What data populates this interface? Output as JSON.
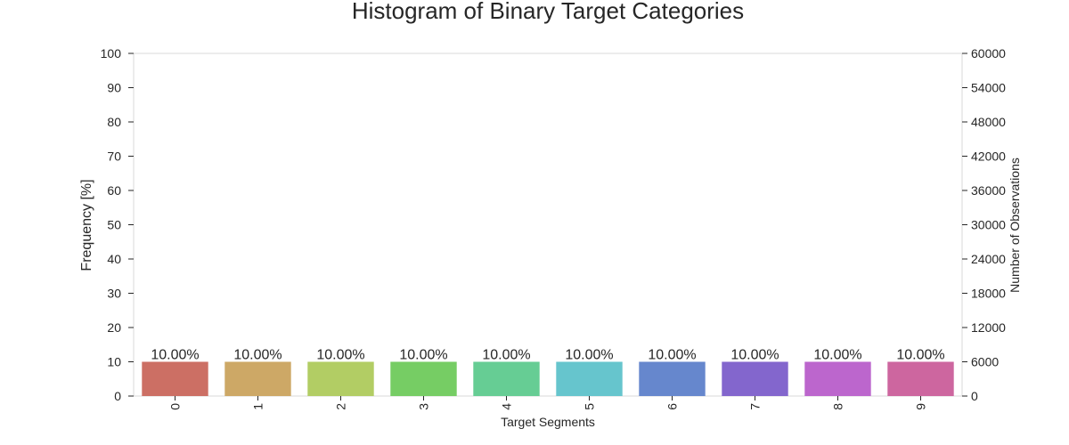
{
  "chart_data": {
    "type": "bar",
    "title": "Histogram of Binary Target Categories",
    "xlabel": "Target Segments",
    "ylabel": "Frequency [%]",
    "y2label": "Number of Observations",
    "categories": [
      "0",
      "1",
      "2",
      "3",
      "4",
      "5",
      "6",
      "7",
      "8",
      "9"
    ],
    "values": [
      10,
      10,
      10,
      10,
      10,
      10,
      10,
      10,
      10,
      10
    ],
    "data_labels": [
      "10.00%",
      "10.00%",
      "10.00%",
      "10.00%",
      "10.00%",
      "10.00%",
      "10.00%",
      "10.00%",
      "10.00%",
      "10.00%"
    ],
    "ylim": [
      0,
      100
    ],
    "yticks": [
      "0",
      "10",
      "20",
      "30",
      "40",
      "50",
      "60",
      "70",
      "80",
      "90",
      "100"
    ],
    "y2lim": [
      0,
      60000
    ],
    "y2ticks": [
      "0",
      "6000",
      "12000",
      "18000",
      "24000",
      "30000",
      "36000",
      "42000",
      "48000",
      "54000",
      "60000"
    ],
    "colors": [
      "#cc6f64",
      "#cda866",
      "#b2cd64",
      "#76cd64",
      "#66cd94",
      "#66c5cd",
      "#6687cd",
      "#8366cd",
      "#bc66cd",
      "#cd669f"
    ],
    "grid": false,
    "legend": "none"
  }
}
